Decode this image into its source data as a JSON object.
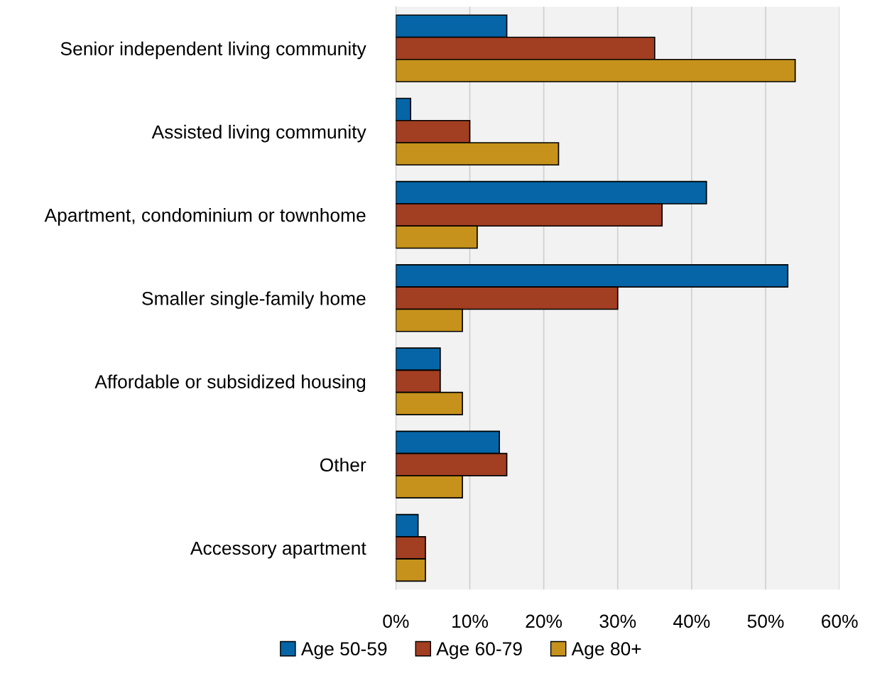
{
  "chart_data": {
    "type": "bar",
    "orientation": "horizontal",
    "categories": [
      "Senior independent living community",
      "Assisted living community",
      "Apartment, condominium or townhome",
      "Smaller single-family home",
      "Affordable or subsidized housing",
      "Other",
      "Accessory apartment"
    ],
    "series": [
      {
        "name": "Age 50-59",
        "color": "#0565a6",
        "values": [
          15,
          2,
          42,
          53,
          6,
          14,
          3
        ]
      },
      {
        "name": "Age 60-79",
        "color": "#a23e22",
        "values": [
          35,
          10,
          36,
          30,
          6,
          15,
          4
        ]
      },
      {
        "name": "Age 80+",
        "color": "#c6921b",
        "values": [
          54,
          22,
          11,
          9,
          9,
          9,
          4
        ]
      }
    ],
    "xlim": [
      0,
      60
    ],
    "xticks": [
      {
        "value": 0,
        "label": "0%"
      },
      {
        "value": 10,
        "label": "10%"
      },
      {
        "value": 20,
        "label": "20%"
      },
      {
        "value": 30,
        "label": "30%"
      },
      {
        "value": 40,
        "label": "40%"
      },
      {
        "value": 50,
        "label": "50%"
      },
      {
        "value": 60,
        "label": "60%"
      }
    ],
    "grid": "x",
    "legend": "bottom"
  }
}
